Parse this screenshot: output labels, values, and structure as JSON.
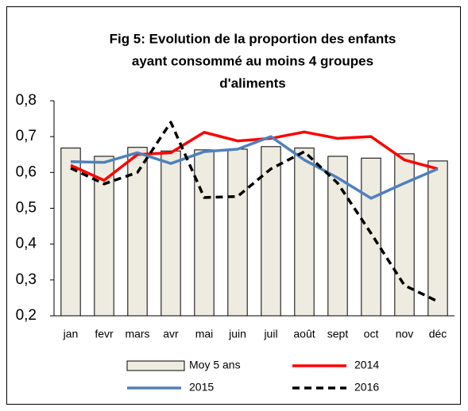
{
  "chart_data": {
    "type": "combo",
    "title": [
      "Fig 5: Evolution de la proportion des enfants",
      "ayant consommé au moins 4 groupes",
      "d'aliments"
    ],
    "categories": [
      "jan",
      "fevr",
      "mars",
      "avr",
      "mai",
      "juin",
      "juil",
      "août",
      "sept",
      "oct",
      "nov",
      "déc"
    ],
    "ylim": [
      0.2,
      0.8
    ],
    "yticks": [
      {
        "value": 0.2,
        "label": "0,2"
      },
      {
        "value": 0.3,
        "label": "0,3"
      },
      {
        "value": 0.4,
        "label": "0,4"
      },
      {
        "value": 0.5,
        "label": "0,5"
      },
      {
        "value": 0.6,
        "label": "0,6"
      },
      {
        "value": 0.7,
        "label": "0,7"
      },
      {
        "value": 0.8,
        "label": "0,8"
      }
    ],
    "grid": false,
    "legend": "bottom",
    "series": [
      {
        "name": "Moy 5 ans",
        "type": "bar",
        "color": "#eeece1",
        "values": [
          0.668,
          0.645,
          0.67,
          0.66,
          0.663,
          0.665,
          0.672,
          0.668,
          0.645,
          0.64,
          0.652,
          0.632
        ]
      },
      {
        "name": "2014",
        "type": "line",
        "color": "#ff0000",
        "dashed": false,
        "values": [
          0.62,
          0.578,
          0.65,
          0.655,
          0.712,
          0.688,
          0.695,
          0.713,
          0.695,
          0.7,
          0.635,
          0.61
        ]
      },
      {
        "name": "2015",
        "type": "line",
        "color": "#4f81bd",
        "dashed": false,
        "values": [
          0.63,
          0.628,
          0.655,
          0.625,
          0.658,
          0.665,
          0.7,
          0.635,
          0.585,
          0.528,
          0.57,
          0.61
        ]
      },
      {
        "name": "2016",
        "type": "line",
        "color": "#000000",
        "dashed": true,
        "values": [
          0.612,
          0.568,
          0.6,
          0.74,
          0.53,
          0.533,
          0.61,
          0.658,
          0.57,
          0.43,
          0.285,
          0.24
        ]
      }
    ]
  }
}
